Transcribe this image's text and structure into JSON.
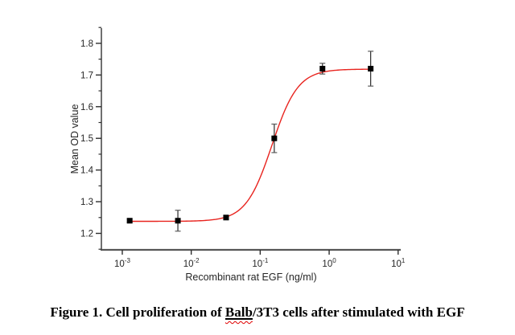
{
  "chart_data": {
    "type": "scatter",
    "title": "",
    "xlabel": "Recombinant rat EGF (ng/ml)",
    "ylabel": "Mean OD value",
    "x_scale": "log10",
    "xlim_log": [
      -3.303,
      1.038
    ],
    "ylim": [
      1.148,
      1.848
    ],
    "x_major_tick_exponents": [
      -3,
      -2,
      -1,
      0,
      1
    ],
    "x_tick_base": "10",
    "y_major_ticks": [
      1.2,
      1.3,
      1.4,
      1.5,
      1.6,
      1.7,
      1.8
    ],
    "y_minor_ticks": [
      1.15,
      1.25,
      1.35,
      1.45,
      1.55,
      1.65,
      1.75,
      1.85
    ],
    "grid": "off",
    "legend": null,
    "points": [
      {
        "x": 0.00128,
        "y": 1.24,
        "err": 0.005
      },
      {
        "x": 0.0064,
        "y": 1.24,
        "err": 0.033
      },
      {
        "x": 0.032,
        "y": 1.25,
        "err": 0.006
      },
      {
        "x": 0.16,
        "y": 1.5,
        "err": 0.045
      },
      {
        "x": 0.8,
        "y": 1.72,
        "err": 0.017
      },
      {
        "x": 4,
        "y": 1.72,
        "err": 0.055
      }
    ],
    "fit_curve": {
      "model": "4PL",
      "bottom": 1.238,
      "top": 1.7185,
      "ec50": 0.148,
      "hill": 2.3,
      "x_range": [
        0.00128,
        4
      ]
    },
    "colors": {
      "curve": "#e8241f",
      "marker": "#000000",
      "axis": "#565656",
      "tick": "#2e2e2e",
      "text": "#262626",
      "error_bar": "#2b2b2b",
      "error_cap": "#5c5c5c"
    }
  },
  "caption": {
    "prefix": "Figure 1. Cell proliferation of ",
    "word": "Balb",
    "suffix": "/3T3 cells after stimulated with EGF",
    "squiggle_color": "#e00000"
  }
}
